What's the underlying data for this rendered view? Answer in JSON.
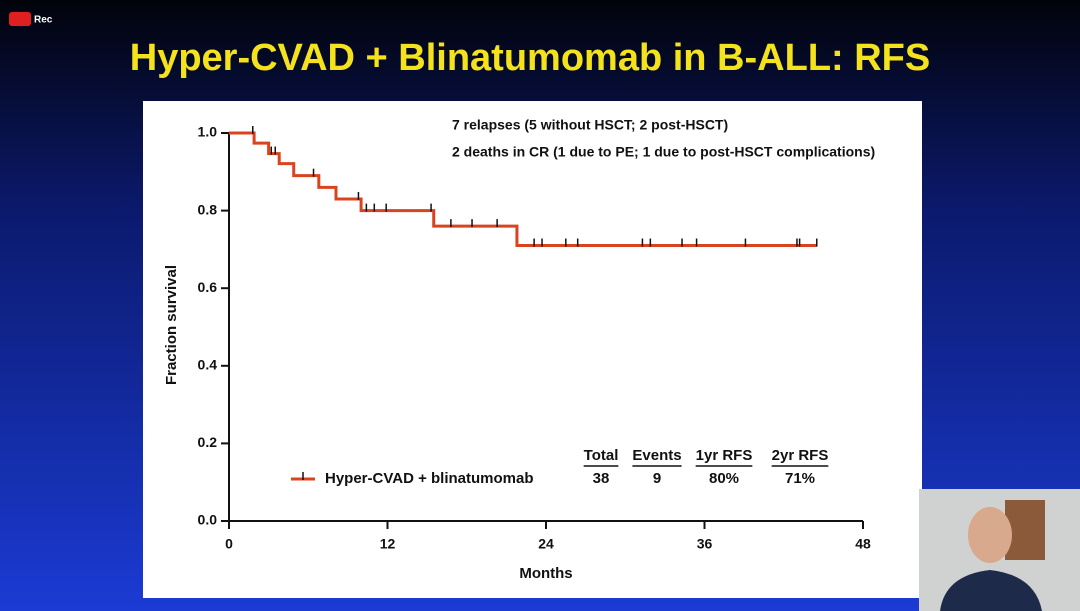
{
  "recording_label": "Rec",
  "chart_data": {
    "type": "step",
    "title": "Hyper-CVAD + Blinatumomab in B-ALL: RFS",
    "annotations": [
      "7 relapses (5 without HSCT; 2 post-HSCT)",
      "2 deaths in CR (1 due to PE; 1 due to post-HSCT complications)"
    ],
    "x_label": "Months",
    "y_label": "Fraction survival",
    "xlim": [
      0,
      48
    ],
    "xticks": [
      0,
      12,
      24,
      36,
      48
    ],
    "ylim": [
      0,
      1
    ],
    "yticks": [
      {
        "value": 0,
        "label": "0.0"
      },
      0.2,
      0.4,
      0.6,
      0.8,
      {
        "value": 1,
        "label": "1.0"
      }
    ],
    "series": [
      {
        "name": "Hyper-CVAD + blinatumomab",
        "color": "#d9431e",
        "x": [
          0,
          1.9,
          3,
          3.8,
          4.9,
          6.8,
          8.1,
          10,
          15.5,
          21.8,
          44.5
        ],
        "values": [
          1,
          0.974,
          0.947,
          0.921,
          0.89,
          0.86,
          0.83,
          0.8,
          0.76,
          0.71,
          0.71
        ]
      }
    ],
    "censor_x": [
      1.8,
      3.2,
      3.5,
      6.4,
      9.8,
      10.4,
      11,
      11.9,
      15.3,
      16.8,
      18.4,
      20.3,
      23.1,
      23.7,
      25.5,
      26.4,
      31.3,
      31.9,
      34.3,
      35.4,
      39.1,
      43,
      43.2,
      44.5
    ],
    "table": {
      "columns": [
        "Total",
        "Events",
        "1yr RFS",
        "2yr RFS"
      ],
      "rows": [
        [
          "38",
          "9",
          "80%",
          "71%"
        ]
      ]
    }
  }
}
